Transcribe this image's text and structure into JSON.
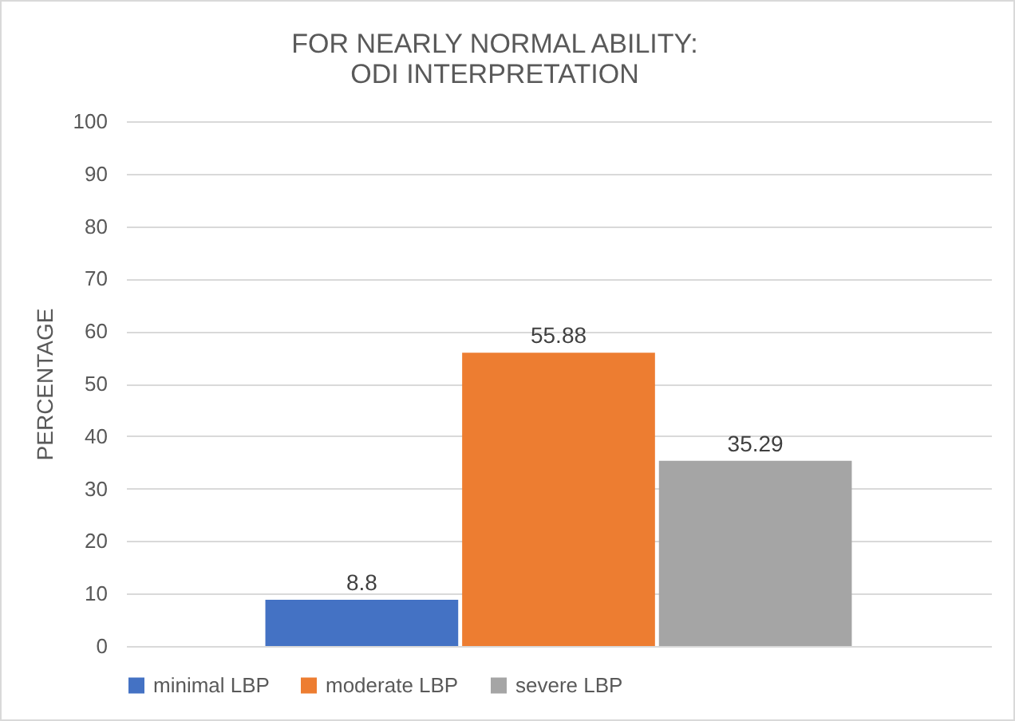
{
  "chart_data": {
    "type": "bar",
    "title": "FOR NEARLY NORMAL ABILITY:\nODI INTERPRETATION",
    "ylabel": "PERCENTAGE",
    "categories": [
      null
    ],
    "series": [
      {
        "name": "minimal LBP",
        "color": "#4472c4",
        "values": [
          8.8
        ]
      },
      {
        "name": "moderate LBP",
        "color": "#ed7d31",
        "values": [
          55.88
        ]
      },
      {
        "name": "severe LBP",
        "color": "#a5a5a5",
        "values": [
          35.29
        ]
      }
    ],
    "ylim": [
      0,
      100
    ],
    "yticks": [
      0,
      10,
      20,
      30,
      40,
      50,
      60,
      70,
      80,
      90,
      100
    ],
    "grid": "y",
    "legend": "bottom",
    "data_labels": true
  }
}
